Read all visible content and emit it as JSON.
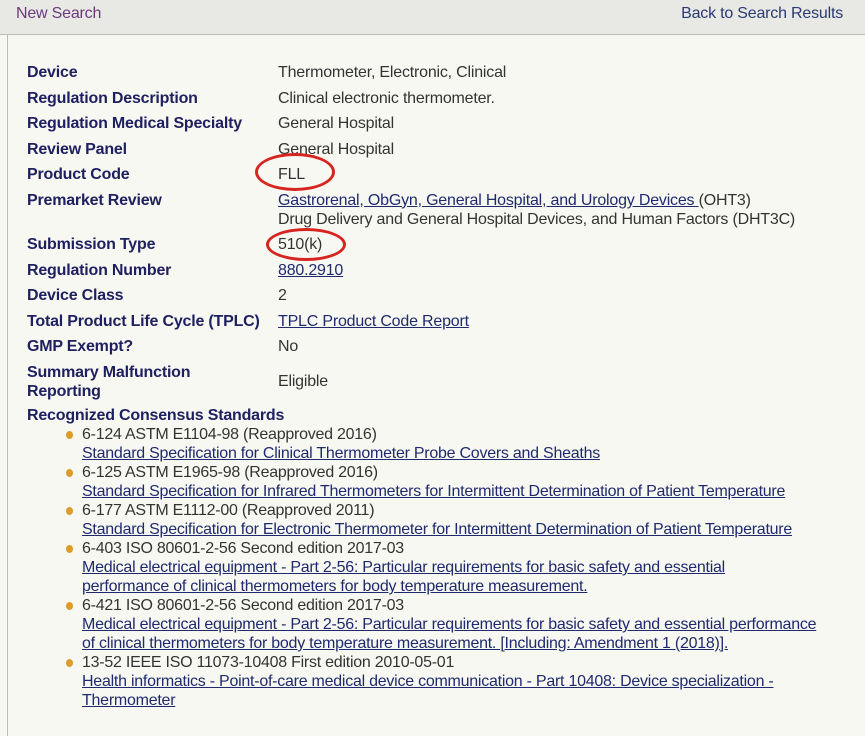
{
  "nav": {
    "new_search": "New Search",
    "back": "Back to Search Results"
  },
  "rows": {
    "device": {
      "label": "Device",
      "value": "Thermometer, Electronic, Clinical"
    },
    "reg_desc": {
      "label": "Regulation Description",
      "value": "Clinical electronic thermometer."
    },
    "specialty": {
      "label": "Regulation Medical Specialty",
      "value": "General Hospital"
    },
    "panel": {
      "label": "Review Panel",
      "value": "General Hospital"
    },
    "product_code": {
      "label": "Product Code",
      "value": "FLL"
    },
    "premarket": {
      "label": "Premarket Review",
      "link1": "Gastrorenal, ObGyn, General Hospital, and Urology Devices ",
      "suffix1": "(OHT3)",
      "line2": "Drug Delivery and General Hospital Devices, and Human Factors (DHT3C)"
    },
    "submission": {
      "label": "Submission Type",
      "value": "510(k)"
    },
    "reg_number": {
      "label": "Regulation Number",
      "value": "880.2910"
    },
    "device_class": {
      "label": "Device Class",
      "value": "2"
    },
    "tplc": {
      "label": "Total Product Life Cycle (TPLC)",
      "value": "TPLC Product Code Report"
    },
    "gmp": {
      "label": "GMP Exempt?",
      "value": "No"
    },
    "summary": {
      "label": "Summary Malfunction Reporting",
      "value": "Eligible"
    }
  },
  "standards_heading": "Recognized Consensus Standards",
  "standards": [
    {
      "title": "6-124 ASTM E1104-98 (Reapproved 2016)",
      "link": "Standard Specification for Clinical Thermometer Probe Covers and Sheaths"
    },
    {
      "title": "6-125 ASTM E1965-98 (Reapproved 2016)",
      "link": "Standard Specification for Infrared Thermometers for Intermittent Determination of Patient Temperature"
    },
    {
      "title": "6-177 ASTM E1112-00 (Reapproved 2011)",
      "link": "Standard Specification for Electronic Thermometer for Intermittent Determination of Patient Temperature"
    },
    {
      "title": "6-403 ISO 80601-2-56 Second edition 2017-03",
      "link": "Medical electrical equipment - Part 2-56: Particular requirements for basic safety and essential performance of clinical thermometers for body temperature measurement."
    },
    {
      "title": "6-421 ISO 80601-2-56 Second edition 2017-03",
      "link": "Medical electrical equipment - Part 2-56: Particular requirements for basic safety and essential performance of clinical thermometers for body temperature measurement. [Including: Amendment 1 (2018)]."
    },
    {
      "title": "13-52 IEEE ISO 11073-10408 First edition 2010-05-01",
      "link": "Health informatics - Point-of-care medical device communication - Part 10408: Device specialization - Thermometer"
    }
  ],
  "colors": {
    "annotation_ring": "#d8241f",
    "bullet": "#e09a2a",
    "label": "#1f2060"
  }
}
